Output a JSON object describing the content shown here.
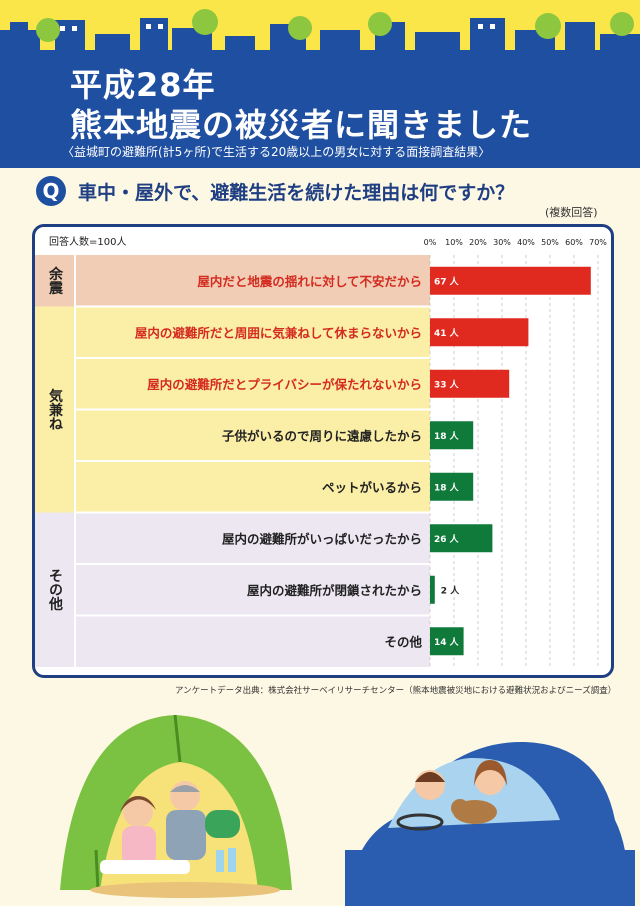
{
  "header": {
    "title_line1": "平成28年",
    "title_line2": "熊本地震の被災者に聞きました",
    "subtitle": "〈益城町の避難所(計5ヶ所)で生活する20歳以上の男女に対する面接調査結果〉"
  },
  "question": {
    "badge": "Q",
    "text": "車中・屋外で、避難生活を続けた理由は何ですか？",
    "note": "(複数回答)"
  },
  "respondents": "回答人数=100人",
  "colors": {
    "navy": "#1f3f82",
    "blue": "#1f4fa1",
    "yellow": "#fbe64a",
    "red": "#e02a20",
    "green": "#107a3b",
    "group_aftershock": "#f0cdb4",
    "group_worry": "#fbefa8",
    "group_other": "#ede7f2",
    "red_text": "#d42a1f"
  },
  "chart_data": {
    "type": "bar",
    "orientation": "horizontal",
    "xlim": [
      0,
      70
    ],
    "ticks": [
      "0%",
      "10%",
      "20%",
      "30%",
      "40%",
      "50%",
      "60%",
      "70%"
    ],
    "grid": true,
    "value_unit": "人",
    "groups": [
      {
        "label": "余震",
        "color": "#f0cdb4",
        "rows": 1
      },
      {
        "label": "気兼ね",
        "color": "#fbefa8",
        "rows": 4
      },
      {
        "label": "その他",
        "color": "#ede7f2",
        "rows": 3
      }
    ],
    "categories": [
      "屋内だと地震の揺れに対して不安だから",
      "屋内の避難所だと周囲に気兼ねして休まらないから",
      "屋内の避難所だとプライバシーが保たれないから",
      "子供がいるので周りに遠慮したから",
      "ペットがいるから",
      "屋内の避難所がいっぱいだったから",
      "屋内の避難所が閉鎖されたから",
      "その他"
    ],
    "values": [
      67,
      41,
      33,
      18,
      18,
      26,
      2,
      14
    ],
    "bar_colors": [
      "#e02a20",
      "#e02a20",
      "#e02a20",
      "#107a3b",
      "#107a3b",
      "#107a3b",
      "#107a3b",
      "#107a3b"
    ],
    "label_colors": [
      "#d42a1f",
      "#d42a1f",
      "#d42a1f",
      "#222222",
      "#222222",
      "#222222",
      "#222222",
      "#222222"
    ]
  },
  "source": "アンケートデータ出典：株式会社サーベイリサーチセンター（熊本地震被災地における避難状況およびニーズ調査）"
}
